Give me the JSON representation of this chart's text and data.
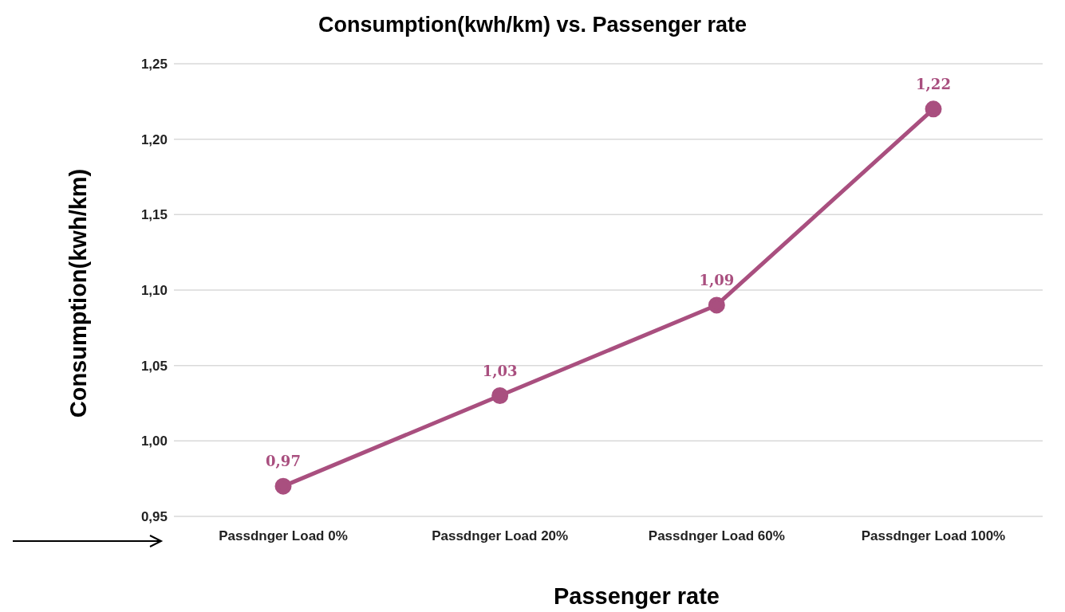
{
  "chart_data": {
    "type": "line",
    "title": "Consumption(kwh/km) vs.  Passenger rate",
    "xlabel": "Passenger rate",
    "ylabel": "Consumption(kwh/km)",
    "categories": [
      "Passdnger Load 0%",
      "Passdnger Load 20%",
      "Passdnger Load 60%",
      "Passdnger Load 100%"
    ],
    "series": [
      {
        "color": "#a94f7f",
        "values": [
          0.97,
          1.03,
          1.09,
          1.22
        ],
        "value_labels": [
          "0,97",
          "1,03",
          "1,09",
          "1,22"
        ]
      }
    ],
    "ylim": [
      0.95,
      1.25
    ],
    "yticks": [
      {
        "value": 0.95,
        "label": "0,95"
      },
      {
        "value": 1.0,
        "label": "1,00"
      },
      {
        "value": 1.05,
        "label": "1,05"
      },
      {
        "value": 1.1,
        "label": "1,10"
      },
      {
        "value": 1.15,
        "label": "1,15"
      },
      {
        "value": 1.2,
        "label": "1,20"
      },
      {
        "value": 1.25,
        "label": "1,25"
      }
    ],
    "grid": "y",
    "marker": "circle",
    "line_style": "solid",
    "legend": false
  }
}
